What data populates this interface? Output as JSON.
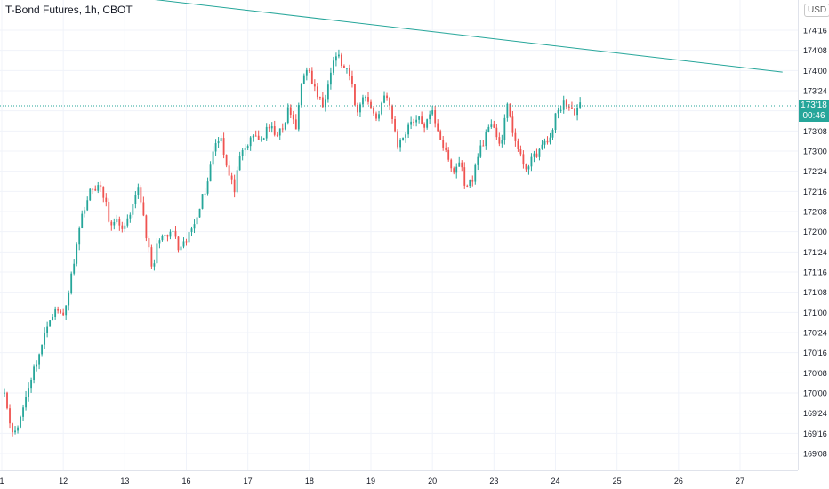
{
  "header": {
    "title": "T-Bond Futures, 1h, CBOT",
    "currency": "USD",
    "last_price": "173'18",
    "countdown": "00:46"
  },
  "colors": {
    "up": "#26a69a",
    "down": "#ef5350",
    "trendline": "#26a69a",
    "grid": "#f0f3fa",
    "axis_text": "#131722"
  },
  "chart_data": {
    "type": "candlestick",
    "title": "T-Bond Futures, 1h, CBOT",
    "y_unit": "points (1/32nds)",
    "y_ticks": [
      "169'08",
      "169'16",
      "169'24",
      "170'00",
      "170'08",
      "170'16",
      "170'24",
      "171'00",
      "171'08",
      "171'16",
      "171'24",
      "172'00",
      "172'08",
      "172'16",
      "172'24",
      "173'00",
      "173'08",
      "173'16",
      "173'24",
      "174'00",
      "174'08",
      "174'16"
    ],
    "y_range": [
      169.17,
      174.625
    ],
    "x_ticks": [
      "1",
      "12",
      "13",
      "16",
      "17",
      "18",
      "19",
      "20",
      "23",
      "24",
      "25",
      "26",
      "27"
    ],
    "grid": true,
    "last_price": 173.5625,
    "trendline": {
      "from": {
        "x": 0.0,
        "y": 175.1
      },
      "to": {
        "x": 12.69,
        "y": 173.98
      }
    },
    "series": [
      {
        "segments": [
          {
            "from_x": 0.0,
            "to_x": 1.0,
            "prices": [
              170.31,
              169.68,
              169.48,
              169.78,
              170.12,
              170.38,
              170.62,
              170.95,
              171.02,
              170.97
            ]
          },
          {
            "from_x": 1.0,
            "to_x": 2.0,
            "prices": [
              170.97,
              171.35,
              171.9,
              172.3,
              172.5,
              172.58,
              172.42,
              172.05,
              172.12,
              172.04
            ]
          },
          {
            "from_x": 2.0,
            "to_x": 3.0,
            "prices": [
              172.04,
              172.22,
              172.58,
              172.05,
              171.48,
              171.96,
              171.9,
              172.02,
              171.73,
              171.88
            ]
          },
          {
            "from_x": 3.0,
            "to_x": 4.0,
            "prices": [
              171.88,
              172.08,
              172.35,
              172.58,
              173.05,
              173.22,
              172.75,
              172.52,
              172.95,
              173.08
            ]
          },
          {
            "from_x": 4.0,
            "to_x": 5.0,
            "prices": [
              173.08,
              173.2,
              173.14,
              173.28,
              173.24,
              173.22,
              173.55,
              173.24,
              174.0,
              173.95
            ]
          },
          {
            "from_x": 5.0,
            "to_x": 6.0,
            "prices": [
              173.95,
              173.72,
              173.55,
              174.0,
              174.22,
              174.02,
              173.92,
              173.45,
              173.75,
              173.52
            ]
          },
          {
            "from_x": 6.0,
            "to_x": 7.0,
            "prices": [
              173.52,
              173.4,
              173.75,
              173.45,
              173.05,
              173.24,
              173.4,
              173.38,
              173.32,
              173.48
            ]
          },
          {
            "from_x": 7.0,
            "to_x": 8.0,
            "prices": [
              173.48,
              173.22,
              172.95,
              172.72,
              172.88,
              172.52,
              172.7,
              173.05,
              173.22,
              173.32
            ]
          },
          {
            "from_x": 8.0,
            "to_x": 9.0,
            "prices": [
              173.32,
              173.05,
              173.58,
              173.15,
              172.88,
              172.8,
              172.95,
              173.05,
              173.12,
              173.42
            ]
          },
          {
            "from_x": 9.0,
            "to_x": 9.4,
            "prices": [
              173.42,
              173.62,
              173.48,
              173.56
            ]
          }
        ]
      }
    ]
  }
}
